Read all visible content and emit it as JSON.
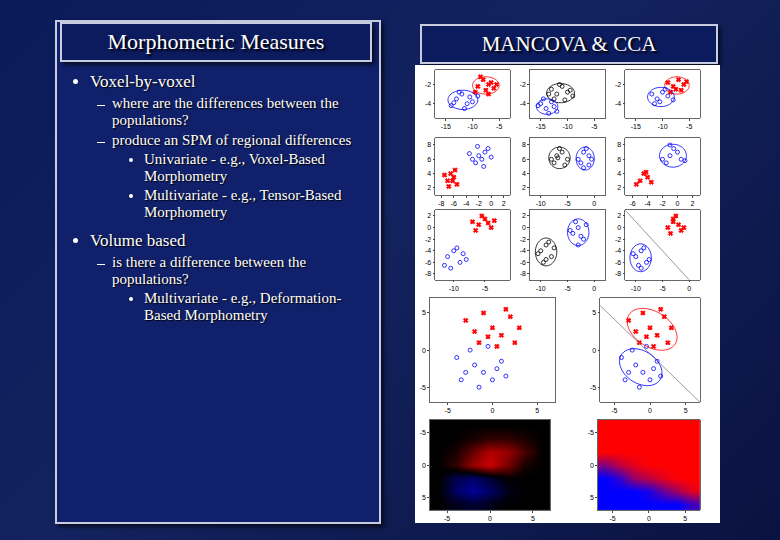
{
  "slide": {
    "left_title": "Morphometric Measures",
    "right_title": "MANCOVA & CCA",
    "bullets": [
      {
        "text": "Voxel-by-voxel",
        "sub": [
          {
            "text": "where are the differences between the populations?"
          },
          {
            "text": "produce an SPM of regional differences",
            "sub": [
              {
                "text": "Univariate - e.g., Voxel-Based Morphometry"
              },
              {
                "text": "Multivariate - e.g., Tensor-Based Morphometry"
              }
            ]
          }
        ]
      },
      {
        "text": "Volume based",
        "sub": [
          {
            "text": "is there a difference between the populations?",
            "sub": [
              {
                "text": "Multivariate - e.g., Deformation-Based Morphometry"
              }
            ]
          }
        ]
      }
    ]
  },
  "chart_data": [
    {
      "type": "scatter",
      "xlim": [
        -17,
        -3
      ],
      "ylim": [
        -5.5,
        -0.5
      ],
      "xticks": [
        -15,
        -10,
        -5
      ],
      "yticks": [
        -4,
        -2
      ],
      "series": [
        {
          "color": "red",
          "marker": "x",
          "x": [
            -8,
            -7,
            -6.5,
            -9,
            -7.5,
            -6,
            -8.5,
            -5.5,
            -7,
            -9.5
          ],
          "y": [
            -1.5,
            -2,
            -1.8,
            -2.2,
            -2.6,
            -2.4,
            -1.2,
            -2,
            -3,
            -2.8
          ]
        },
        {
          "color": "blue",
          "marker": "circle-open",
          "x": [
            -13,
            -11,
            -12,
            -10,
            -14,
            -9,
            -11.5,
            -12.5,
            -10.5,
            -13.5
          ],
          "y": [
            -3.5,
            -4,
            -3,
            -3.8,
            -4.2,
            -3.2,
            -4.5,
            -2.8,
            -3.3,
            -3.9
          ]
        }
      ],
      "ellipses": [
        {
          "color": "red",
          "cx": -7.5,
          "cy": -2.1,
          "rx": 2.5,
          "ry": 0.9,
          "angle": 0
        },
        {
          "color": "blue",
          "cx": -11.8,
          "cy": -3.6,
          "rx": 2.8,
          "ry": 1,
          "angle": 0
        }
      ]
    },
    {
      "type": "scatter",
      "xlim": [
        -17,
        -3
      ],
      "ylim": [
        -5.5,
        -0.5
      ],
      "xticks": [
        -15,
        -10,
        -5
      ],
      "yticks": [
        -4,
        -2
      ],
      "series": [
        {
          "color": "black",
          "marker": "circle-open",
          "x": [
            -13,
            -12,
            -11,
            -10,
            -9,
            -12.5,
            -11.5,
            -10.5,
            -9.5,
            -13.5
          ],
          "y": [
            -2.5,
            -3,
            -2.2,
            -2.8,
            -3.2,
            -3.5,
            -2,
            -3.6,
            -2.6,
            -3
          ]
        },
        {
          "color": "blue",
          "marker": "circle-open",
          "x": [
            -15,
            -14,
            -13,
            -14.5,
            -12,
            -15.5,
            -13.5,
            -12.5
          ],
          "y": [
            -4,
            -4.5,
            -3.8,
            -3.5,
            -4.8,
            -4.2,
            -5,
            -4.3
          ]
        }
      ],
      "ellipses": [
        {
          "color": "black",
          "cx": -11.3,
          "cy": -2.9,
          "rx": 2.6,
          "ry": 1,
          "angle": 0
        },
        {
          "color": "blue",
          "cx": -13.8,
          "cy": -4.3,
          "rx": 2,
          "ry": 0.8,
          "angle": 0
        }
      ]
    },
    {
      "type": "scatter",
      "xlim": [
        -17,
        -3
      ],
      "ylim": [
        -5.5,
        -0.5
      ],
      "xticks": [
        -15,
        -10,
        -5
      ],
      "yticks": [
        -4,
        -2
      ],
      "series": [
        {
          "color": "red",
          "marker": "x",
          "x": [
            -9,
            -8,
            -7,
            -6,
            -8.5,
            -7.5,
            -6.5,
            -5.5
          ],
          "y": [
            -1.8,
            -2.2,
            -1.5,
            -2,
            -2.8,
            -2.5,
            -2.6,
            -1.7
          ]
        },
        {
          "color": "blue",
          "marker": "circle-open",
          "x": [
            -12,
            -11,
            -10,
            -9,
            -11.5,
            -10.5,
            -9.5,
            -8
          ],
          "y": [
            -3,
            -3.5,
            -2.8,
            -3.2,
            -4,
            -3.8,
            -2.5,
            -3.6
          ]
        }
      ],
      "ellipses": [
        {
          "color": "red",
          "cx": -7.3,
          "cy": -2.1,
          "rx": 2.3,
          "ry": 0.9,
          "angle": 0
        },
        {
          "color": "blue",
          "cx": -10.3,
          "cy": -3.3,
          "rx": 2.5,
          "ry": 1,
          "angle": 0
        }
      ]
    },
    {
      "type": "scatter",
      "xlim": [
        -9,
        3
      ],
      "ylim": [
        1,
        9
      ],
      "xticks": [
        -8,
        -6,
        -4,
        -2,
        0,
        2
      ],
      "yticks": [
        2,
        4,
        6,
        8
      ],
      "series": [
        {
          "color": "red",
          "marker": "x",
          "x": [
            -7,
            -6.5,
            -6,
            -5.5,
            -7.5,
            -6.8,
            -5.8,
            -6.2
          ],
          "y": [
            3,
            4,
            3.5,
            2.5,
            3.8,
            2.2,
            4.5,
            3
          ]
        },
        {
          "color": "blue",
          "marker": "circle-open",
          "x": [
            -3,
            -2,
            -1,
            -2.5,
            -1.5,
            -0.5,
            -3.5,
            -2.2,
            -1.2,
            0
          ],
          "y": [
            6,
            6.5,
            7,
            5.5,
            6,
            7.5,
            6.8,
            7.8,
            5,
            6.3
          ]
        }
      ],
      "ellipses": []
    },
    {
      "type": "scatter",
      "xlim": [
        -12,
        2
      ],
      "ylim": [
        1,
        9
      ],
      "xticks": [
        -10,
        -5,
        0
      ],
      "yticks": [
        2,
        4,
        6,
        8
      ],
      "series": [
        {
          "color": "black",
          "marker": "circle-open",
          "x": [
            -8,
            -7,
            -6,
            -5,
            -7.5,
            -6.5,
            -5.5,
            -6.8
          ],
          "y": [
            6,
            6.5,
            7,
            6,
            5.5,
            7.5,
            5.2,
            6.2
          ]
        },
        {
          "color": "blue",
          "marker": "circle-open",
          "x": [
            -3,
            -2,
            -1,
            -2.5,
            -1.5,
            -0.5,
            -2,
            -1
          ],
          "y": [
            6,
            7,
            6.5,
            5.5,
            7.5,
            6,
            4.8,
            5.2
          ]
        }
      ],
      "ellipses": [
        {
          "color": "black",
          "cx": -6.5,
          "cy": 6.2,
          "rx": 2,
          "ry": 1.5,
          "angle": 0
        },
        {
          "color": "blue",
          "cx": -1.7,
          "cy": 6.1,
          "rx": 1.7,
          "ry": 1.6,
          "angle": 0
        }
      ]
    },
    {
      "type": "scatter",
      "xlim": [
        -7,
        3
      ],
      "ylim": [
        1,
        9
      ],
      "xticks": [
        -6,
        -4,
        -2,
        0,
        2
      ],
      "yticks": [
        2,
        4,
        6,
        8
      ],
      "series": [
        {
          "color": "red",
          "marker": "x",
          "x": [
            -5,
            -4.5,
            -4,
            -5.5,
            -3.5,
            -4.2
          ],
          "y": [
            3,
            4,
            3.5,
            2.5,
            2.8,
            4.2
          ]
        },
        {
          "color": "blue",
          "marker": "circle-open",
          "x": [
            -2,
            -1,
            0,
            -1.5,
            -0.5,
            0.5,
            -1,
            1
          ],
          "y": [
            6,
            6.5,
            7,
            5.5,
            7.5,
            6,
            8,
            5.8
          ]
        }
      ],
      "ellipses": [
        {
          "color": "blue",
          "cx": -0.6,
          "cy": 6.5,
          "rx": 1.8,
          "ry": 1.6,
          "angle": 0
        }
      ]
    },
    {
      "type": "scatter",
      "xlim": [
        -13,
        -1
      ],
      "ylim": [
        -9,
        3
      ],
      "xticks": [
        -10,
        -5
      ],
      "yticks": [
        -8,
        -6,
        -4,
        -2,
        0,
        2
      ],
      "series": [
        {
          "color": "red",
          "marker": "x",
          "x": [
            -7,
            -6,
            -5,
            -4,
            -6.5,
            -5.5,
            -4.5,
            -3.5
          ],
          "y": [
            1,
            0.5,
            1.5,
            0,
            -0.5,
            2,
            0.8,
            1.2
          ]
        },
        {
          "color": "blue",
          "marker": "circle-open",
          "x": [
            -11,
            -10,
            -9,
            -8,
            -10.5,
            -9.5,
            -8.5,
            -11.5
          ],
          "y": [
            -5,
            -4,
            -6,
            -5.5,
            -7,
            -3.5,
            -4.5,
            -6.5
          ]
        }
      ],
      "ellipses": []
    },
    {
      "type": "scatter",
      "xlim": [
        -12,
        2
      ],
      "ylim": [
        -9,
        3
      ],
      "xticks": [
        -10,
        -5,
        0
      ],
      "yticks": [
        -8,
        -6,
        -4,
        -2,
        0,
        2
      ],
      "series": [
        {
          "color": "black",
          "marker": "circle-open",
          "x": [
            -10,
            -9,
            -8,
            -9.5,
            -8.5,
            -10.5,
            -7.5,
            -9
          ],
          "y": [
            -4,
            -3,
            -5,
            -6,
            -2.5,
            -4.5,
            -3.5,
            -5.5
          ]
        },
        {
          "color": "blue",
          "marker": "circle-open",
          "x": [
            -4,
            -3,
            -2,
            -3.5,
            -2.5,
            -1.5,
            -3,
            -4.5
          ],
          "y": [
            -1,
            0,
            -2,
            1,
            -1.5,
            0.5,
            -3,
            -0.5
          ]
        }
      ],
      "ellipses": [
        {
          "color": "black",
          "cx": -9,
          "cy": -4.2,
          "rx": 2,
          "ry": 2.4,
          "angle": 0
        },
        {
          "color": "blue",
          "cx": -3,
          "cy": -0.8,
          "rx": 2,
          "ry": 2.3,
          "angle": 0
        }
      ]
    },
    {
      "type": "scatter",
      "xlim": [
        -12,
        2
      ],
      "ylim": [
        -9,
        3
      ],
      "xticks": [
        -10,
        -5,
        0
      ],
      "yticks": [
        -8,
        -6,
        -4,
        -2,
        0,
        2
      ],
      "series": [
        {
          "color": "red",
          "marker": "x",
          "x": [
            -4,
            -3,
            -2,
            -3.5,
            -2.5,
            -1.5,
            -3,
            -1
          ],
          "y": [
            0,
            1,
            0.5,
            -1,
            2,
            -0.5,
            1.5,
            0
          ]
        },
        {
          "color": "blue",
          "marker": "circle-open",
          "x": [
            -10,
            -9,
            -8,
            -9.5,
            -8.5,
            -7.5,
            -10.5,
            -9
          ],
          "y": [
            -5,
            -4,
            -6,
            -6.5,
            -3.5,
            -5.5,
            -4.5,
            -7
          ]
        },
        {
          "type": "line",
          "color": "gray",
          "x": [
            -12,
            0
          ],
          "y": [
            3,
            -9
          ]
        }
      ],
      "ellipses": [
        {
          "color": "blue",
          "cx": -9.1,
          "cy": -5.2,
          "rx": 2,
          "ry": 2.4,
          "angle": 0
        }
      ]
    },
    {
      "type": "scatter",
      "xlim": [
        -7,
        7
      ],
      "ylim": [
        -7,
        7
      ],
      "xticks": [
        -5,
        0,
        5
      ],
      "yticks": [
        -5,
        0,
        5
      ],
      "series": [
        {
          "color": "red",
          "marker": "x",
          "x": [
            -3,
            -1,
            0,
            1,
            2,
            -2,
            3,
            -1.5,
            0.5,
            1.5,
            -0.5,
            2.5
          ],
          "y": [
            4,
            5,
            3,
            2,
            4.5,
            2.5,
            3,
            1,
            0.5,
            5.5,
            1.8,
            1
          ]
        },
        {
          "color": "blue",
          "marker": "circle-open",
          "x": [
            -4,
            -2,
            -1,
            0,
            1,
            -3,
            -2.5,
            0.5,
            -1.5,
            -3.5,
            1.5,
            -0.5
          ],
          "y": [
            -1,
            -2,
            -3,
            -4,
            -1.5,
            -3,
            0,
            -2.5,
            -5,
            -4,
            -3.5,
            0.5
          ]
        }
      ],
      "ellipses": []
    },
    {
      "type": "scatter",
      "xlim": [
        -7,
        7
      ],
      "ylim": [
        -7,
        7
      ],
      "xticks": [
        -5,
        0,
        5
      ],
      "yticks": [
        -5,
        0,
        5
      ],
      "series": [
        {
          "color": "red",
          "marker": "x",
          "x": [
            -3,
            -1,
            0,
            1,
            2,
            -2,
            3,
            -1.5,
            0.5,
            1.5,
            -0.5,
            2.5
          ],
          "y": [
            4,
            5,
            3,
            2,
            4.5,
            2.5,
            3,
            1,
            0.5,
            5.5,
            1.8,
            1
          ]
        },
        {
          "color": "blue",
          "marker": "circle-open",
          "x": [
            -4,
            -2,
            -1,
            0,
            1,
            -3,
            -2.5,
            0.5,
            -1.5,
            -3.5,
            1.5,
            -0.5
          ],
          "y": [
            -1,
            -2,
            -3,
            -4,
            -1.5,
            -3,
            0,
            -2.5,
            -5,
            -4,
            -3.5,
            0.5
          ]
        },
        {
          "type": "line",
          "color": "gray",
          "x": [
            -7,
            7
          ],
          "y": [
            6,
            -7
          ]
        }
      ],
      "ellipses": [
        {
          "color": "red",
          "cx": 0.3,
          "cy": 2.8,
          "rx": 3.8,
          "ry": 2.4,
          "angle": -30
        },
        {
          "color": "blue",
          "cx": -1.3,
          "cy": -2.3,
          "rx": 3.2,
          "ry": 2.2,
          "angle": -30
        }
      ]
    },
    {
      "type": "heatmap",
      "xlim": [
        -7,
        7
      ],
      "ylim": [
        7,
        -7
      ],
      "xticks": [
        -5,
        0,
        5
      ],
      "yticks": [
        -5,
        0,
        5
      ],
      "zlim": [
        -1,
        1
      ],
      "colors": [
        "blue",
        "black",
        "red"
      ],
      "x": [
        -6,
        -4,
        -2,
        0,
        2,
        4,
        6
      ],
      "y": [
        -6,
        -4,
        -2,
        0,
        2,
        4,
        6
      ],
      "z": [
        [
          0,
          0,
          0,
          0,
          0,
          0,
          0
        ],
        [
          0,
          0,
          0.1,
          0.2,
          0.2,
          0.1,
          0
        ],
        [
          0,
          0.1,
          0.4,
          0.7,
          0.6,
          0.3,
          0
        ],
        [
          0,
          0.2,
          0.6,
          0.8,
          0.5,
          0.1,
          0
        ],
        [
          0,
          -0.3,
          -0.4,
          -0.2,
          0,
          0,
          0
        ],
        [
          0,
          -0.4,
          -0.6,
          -0.4,
          -0.1,
          0,
          0
        ],
        [
          0,
          -0.1,
          -0.2,
          -0.1,
          0,
          0,
          0
        ]
      ]
    },
    {
      "type": "heatmap",
      "xlim": [
        -7,
        7
      ],
      "ylim": [
        7,
        -7
      ],
      "xticks": [
        -5,
        0,
        5
      ],
      "yticks": [
        -5,
        0,
        5
      ],
      "zlim": [
        -1,
        1
      ],
      "colors": [
        "blue",
        "purple",
        "red"
      ],
      "x": [
        -6,
        -4,
        -2,
        0,
        2,
        4,
        6
      ],
      "y": [
        -6,
        -4,
        -2,
        0,
        2,
        4,
        6
      ],
      "z": [
        [
          1,
          1,
          1,
          1,
          1,
          1,
          1
        ],
        [
          1,
          1,
          1,
          1,
          1,
          1,
          1
        ],
        [
          1,
          1,
          1,
          1,
          1,
          1,
          1
        ],
        [
          0,
          0.5,
          0.8,
          1,
          1,
          1,
          1
        ],
        [
          -1,
          -0.6,
          0.2,
          0.5,
          0.8,
          1,
          1
        ],
        [
          -1,
          -1,
          -1,
          -0.8,
          -0.2,
          0.3,
          0.8
        ],
        [
          -1,
          -1,
          -1,
          -1,
          -1,
          -1,
          -0.5
        ]
      ]
    }
  ]
}
